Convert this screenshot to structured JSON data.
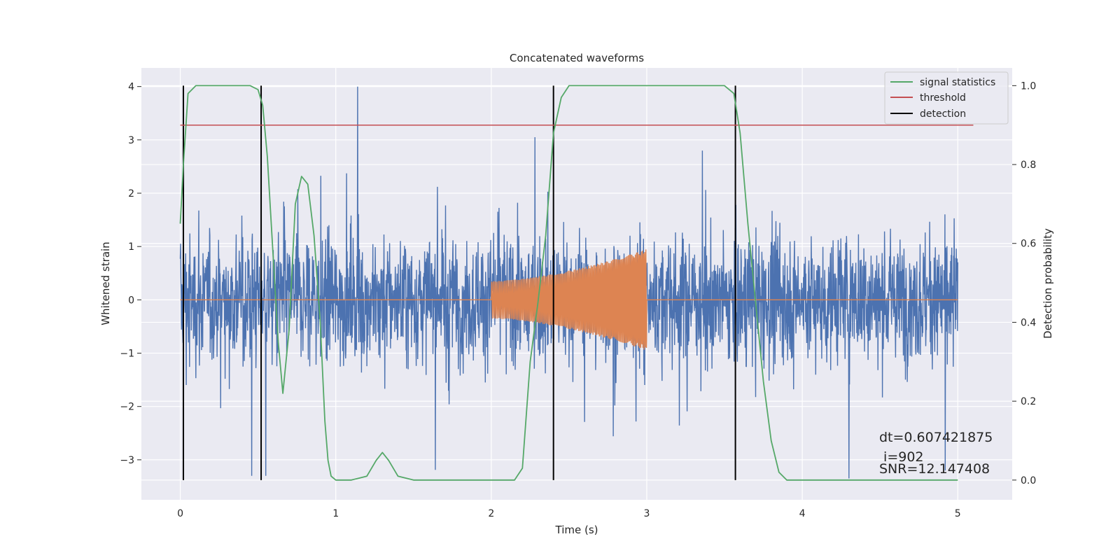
{
  "chart_data": {
    "type": "line",
    "title": "Concatenated waveforms",
    "xlabel": "Time (s)",
    "ylabel_left": "Whitened strain",
    "ylabel_right": "Detection probability",
    "xlim": [
      -0.25,
      5.35
    ],
    "ylim_left": [
      -3.75,
      4.35
    ],
    "ylim_right": [
      -0.05,
      1.045
    ],
    "x_ticks": [
      0,
      1,
      2,
      3,
      4,
      5
    ],
    "y_left_ticks": [
      -3,
      -2,
      -1,
      0,
      1,
      2,
      3,
      4
    ],
    "y_right_ticks": [
      0.0,
      0.2,
      0.4,
      0.6,
      0.8,
      1.0
    ],
    "x_tick_labels": [
      "0",
      "1",
      "2",
      "3",
      "4",
      "5"
    ],
    "y_left_tick_labels": [
      "−3",
      "−2",
      "−1",
      "0",
      "1",
      "2",
      "3",
      "4"
    ],
    "y_right_tick_labels": [
      "0.0",
      "0.2",
      "0.4",
      "0.6",
      "0.8",
      "1.0"
    ],
    "grid": true,
    "legend_position": "top-right",
    "background_color": "#eaeaf2",
    "noise": {
      "color": "#4c72b0",
      "x_range": [
        0,
        5
      ],
      "typical_amplitude": 1.05,
      "spikes": [
        [
          1.14,
          4.0
        ],
        [
          0.46,
          -3.3
        ],
        [
          0.55,
          -3.3
        ],
        [
          2.28,
          3.05
        ],
        [
          4.3,
          -3.35
        ],
        [
          4.92,
          -3.2
        ]
      ]
    },
    "template": {
      "color": "#dd8452",
      "x_range": [
        0,
        5
      ],
      "chirp_range": [
        2.0,
        3.0
      ],
      "amp_start": 0.35,
      "amp_end": 0.95
    },
    "signal_statistics": {
      "name": "signal statistics",
      "color": "#55a868",
      "x": [
        0.0,
        0.02,
        0.05,
        0.1,
        0.2,
        0.3,
        0.45,
        0.5,
        0.53,
        0.56,
        0.6,
        0.63,
        0.66,
        0.7,
        0.74,
        0.78,
        0.82,
        0.86,
        0.9,
        0.93,
        0.95,
        0.97,
        1.0,
        1.1,
        1.2,
        1.26,
        1.3,
        1.34,
        1.4,
        1.5,
        1.7,
        2.0,
        2.15,
        2.2,
        2.25,
        2.3,
        2.35,
        2.4,
        2.45,
        2.5,
        2.6,
        3.0,
        3.5,
        3.56,
        3.6,
        3.65,
        3.7,
        3.75,
        3.8,
        3.85,
        3.9,
        4.0,
        5.0
      ],
      "values": [
        0.65,
        0.8,
        0.98,
        1.0,
        1.0,
        1.0,
        1.0,
        0.99,
        0.95,
        0.82,
        0.55,
        0.35,
        0.22,
        0.38,
        0.7,
        0.77,
        0.75,
        0.62,
        0.4,
        0.15,
        0.05,
        0.01,
        0.0,
        0.0,
        0.01,
        0.05,
        0.07,
        0.05,
        0.01,
        0.0,
        0.0,
        0.0,
        0.0,
        0.03,
        0.3,
        0.45,
        0.62,
        0.88,
        0.97,
        1.0,
        1.0,
        1.0,
        1.0,
        0.98,
        0.88,
        0.65,
        0.45,
        0.25,
        0.1,
        0.02,
        0.0,
        0.0,
        0.0
      ]
    },
    "threshold": {
      "name": "threshold",
      "color": "#c44e52",
      "value": 0.9,
      "x_range": [
        0,
        5.1
      ]
    },
    "detections": {
      "name": "detection",
      "color": "#000000",
      "x": [
        0.02,
        0.52,
        2.4,
        3.57
      ],
      "y_range": [
        0.0,
        1.0
      ]
    },
    "annotations": [
      "dt=0.607421875",
      " i=902",
      "SNR=12.147408"
    ]
  }
}
